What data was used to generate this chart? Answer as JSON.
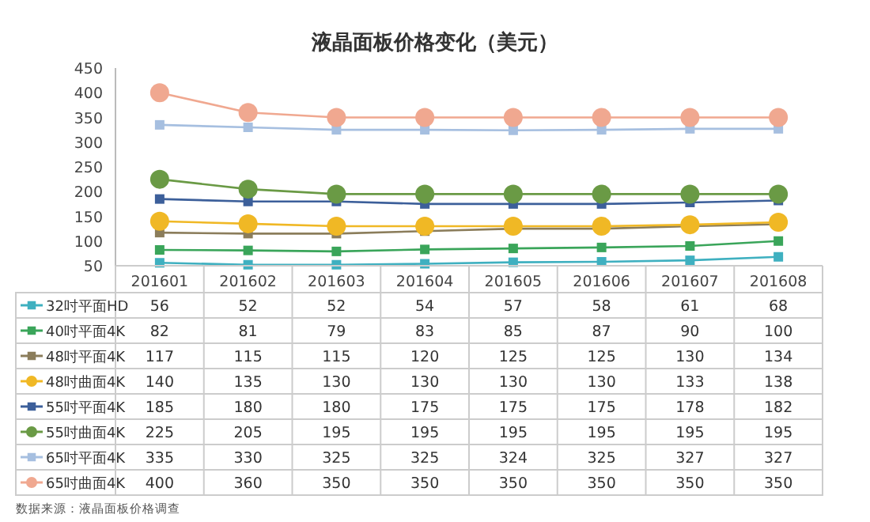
{
  "chart_data": {
    "type": "line",
    "title": "液晶面板价格变化（美元）",
    "categories": [
      "201601",
      "201602",
      "201603",
      "201604",
      "201605",
      "201606",
      "201607",
      "201608"
    ],
    "series": [
      {
        "name": "32吋平面HD",
        "color": "#3fb0c0",
        "marker": "square",
        "values": [
          56,
          52,
          52,
          54,
          57,
          58,
          61,
          68
        ]
      },
      {
        "name": "40吋平面4K",
        "color": "#3aa55a",
        "marker": "square",
        "values": [
          82,
          81,
          79,
          83,
          85,
          87,
          90,
          100
        ]
      },
      {
        "name": "48吋平面4K",
        "color": "#8b7d5b",
        "marker": "square",
        "values": [
          117,
          115,
          115,
          120,
          125,
          125,
          130,
          134
        ]
      },
      {
        "name": "48吋曲面4K",
        "color": "#f0b825",
        "marker": "circle",
        "values": [
          140,
          135,
          130,
          130,
          130,
          130,
          133,
          138
        ]
      },
      {
        "name": "55吋平面4K",
        "color": "#3c5f9a",
        "marker": "square",
        "values": [
          185,
          180,
          180,
          175,
          175,
          175,
          178,
          182
        ]
      },
      {
        "name": "55吋曲面4K",
        "color": "#6a9a45",
        "marker": "circle",
        "values": [
          225,
          205,
          195,
          195,
          195,
          195,
          195,
          195
        ]
      },
      {
        "name": "65吋平面4K",
        "color": "#a6bfe0",
        "marker": "square",
        "values": [
          335,
          330,
          325,
          325,
          324,
          325,
          327,
          327
        ]
      },
      {
        "name": "65吋曲面4K",
        "color": "#f0a890",
        "marker": "circle",
        "values": [
          400,
          360,
          350,
          350,
          350,
          350,
          350,
          350
        ]
      }
    ],
    "ylim": [
      50,
      450
    ],
    "yticks": [
      50,
      100,
      150,
      200,
      250,
      300,
      350,
      400,
      450
    ],
    "data_labels": true,
    "legend": "bottom",
    "annotations": [
      "数据来源：液晶面板价格调查"
    ]
  }
}
